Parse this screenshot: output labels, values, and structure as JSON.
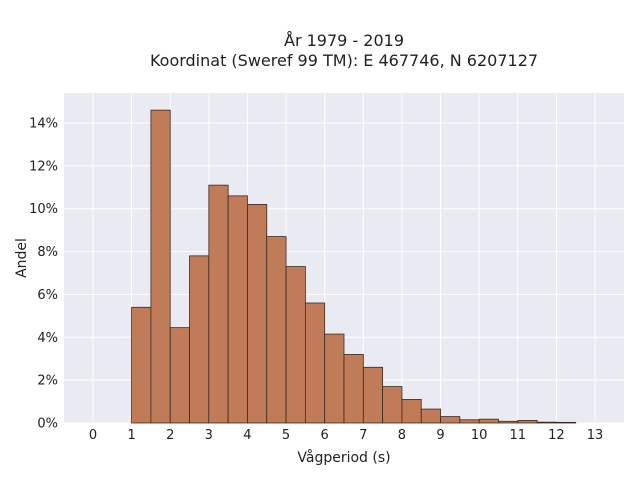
{
  "chart_data": {
    "type": "bar",
    "title_lines": [
      "År 1979 - 2019",
      "Koordinat (Sweref 99 TM): E 467746, N 6207127"
    ],
    "xlabel": "Vågperiod (s)",
    "ylabel": "Andel",
    "xlim": [
      -0.75,
      13.75
    ],
    "ylim": [
      0,
      15.4
    ],
    "x_ticks": [
      0,
      1,
      2,
      3,
      4,
      5,
      6,
      7,
      8,
      9,
      10,
      11,
      12,
      13
    ],
    "x_tick_labels": [
      "0",
      "1",
      "2",
      "3",
      "4",
      "5",
      "6",
      "7",
      "8",
      "9",
      "10",
      "11",
      "12",
      "13"
    ],
    "y_ticks": [
      0,
      2,
      4,
      6,
      8,
      10,
      12,
      14
    ],
    "y_tick_labels": [
      "0%",
      "2%",
      "4%",
      "6%",
      "8%",
      "10%",
      "12%",
      "14%"
    ],
    "bin_width": 0.5,
    "bin_starts": [
      1.0,
      1.5,
      2.0,
      2.5,
      3.0,
      3.5,
      4.0,
      4.5,
      5.0,
      5.5,
      6.0,
      6.5,
      7.0,
      7.5,
      8.0,
      8.5,
      9.0,
      9.5,
      10.0,
      10.5,
      11.0,
      11.5,
      12.0
    ],
    "values": [
      5.4,
      14.6,
      4.45,
      7.8,
      11.1,
      10.6,
      10.2,
      8.7,
      7.3,
      5.6,
      4.15,
      3.2,
      2.6,
      1.7,
      1.1,
      0.65,
      0.3,
      0.15,
      0.18,
      0.08,
      0.12,
      0.04,
      0.03
    ],
    "grid": true,
    "colors": {
      "bar_fill": "#c07c58",
      "bar_edge": "#3b2a20",
      "plot_background": "#eaeaf2",
      "grid": "#ffffff"
    }
  }
}
